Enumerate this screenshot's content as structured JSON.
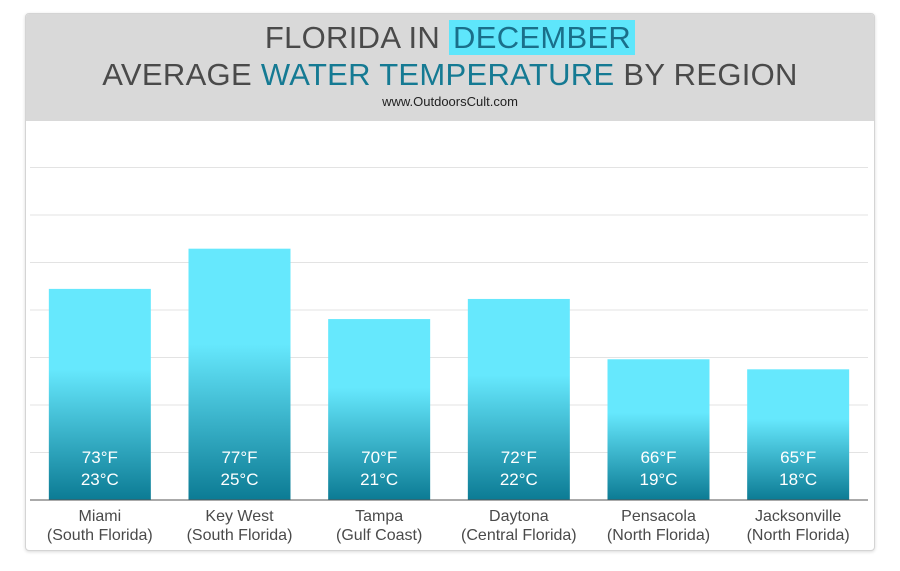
{
  "header": {
    "title_line1_prefix": "FLORIDA IN ",
    "title_line1_highlight": "DECEMBER",
    "title_line2_prefix": "AVERAGE ",
    "title_line2_highlight": "WATER TEMPERATURE",
    "title_line2_suffix": " BY REGION",
    "source": "www.OutdoorsCult.com"
  },
  "colors": {
    "bar_top": "#66e8fd",
    "bar_bottom": "#0c7b94",
    "header_bg": "#d9d9d9",
    "highlight_bg": "#5ee6fb",
    "grid": "#e3e3e3"
  },
  "chart_data": {
    "type": "bar",
    "categories": [
      [
        "Miami",
        "(South Florida)"
      ],
      [
        "Key West",
        "(South Florida)"
      ],
      [
        "Tampa",
        "(Gulf Coast)"
      ],
      [
        "Daytona",
        "(Central Florida)"
      ],
      [
        "Pensacola",
        "(North Florida)"
      ],
      [
        "Jacksonville",
        "(North Florida)"
      ]
    ],
    "values_f": [
      73,
      77,
      70,
      72,
      66,
      65
    ],
    "labels_f": [
      "73°F",
      "77°F",
      "70°F",
      "72°F",
      "66°F",
      "65°F"
    ],
    "labels_c": [
      "23°C",
      "25°C",
      "21°C",
      "22°C",
      "19°C",
      "18°C"
    ],
    "ylim": [
      52,
      90
    ],
    "grid": true,
    "legend": "none"
  }
}
